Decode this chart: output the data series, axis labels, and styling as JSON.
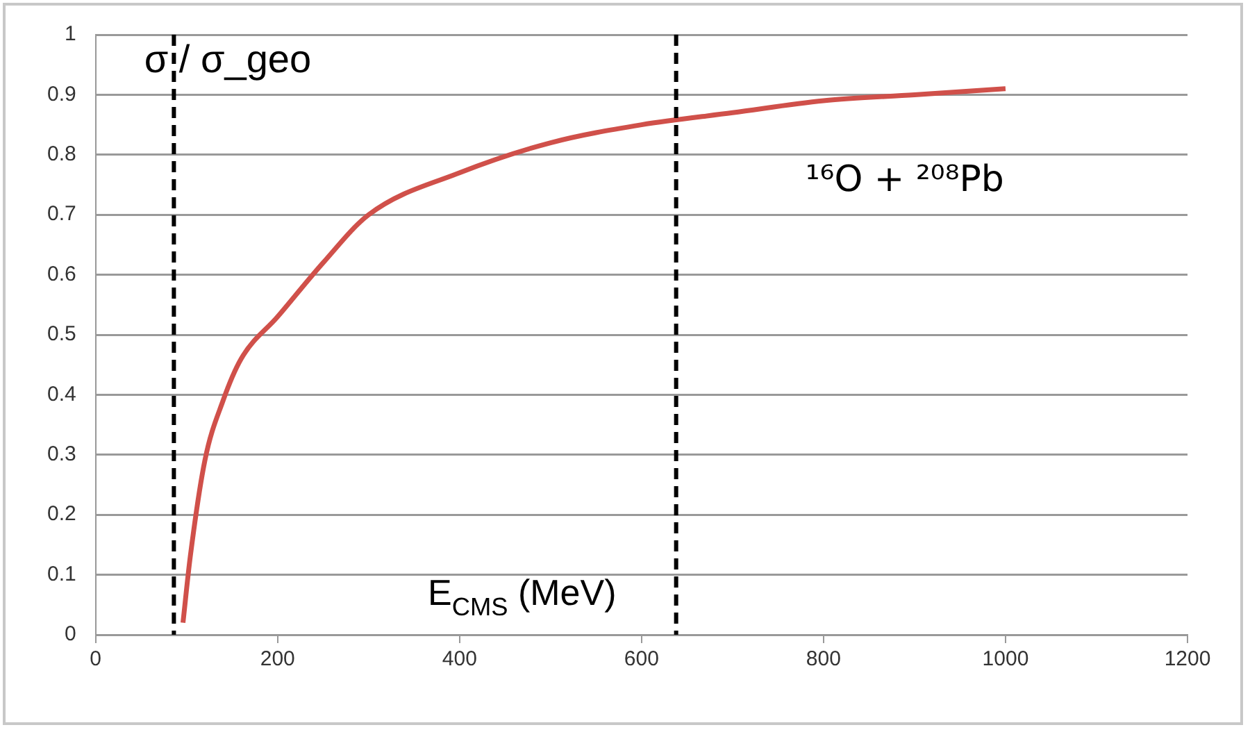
{
  "chart_data": {
    "type": "line",
    "xlabel": "E$_{CMS}$ (MeV)",
    "ylabel": "σ / σ_geo",
    "annotations": [
      "¹⁶O + ²⁰⁸Pb"
    ],
    "x": [
      96,
      104,
      120,
      140,
      160,
      200,
      250,
      300,
      400,
      500,
      600,
      700,
      800,
      900,
      1000
    ],
    "series": [
      {
        "color": "#d0504a",
        "values": [
          0.02,
          0.13,
          0.29,
          0.39,
          0.46,
          0.53,
          0.62,
          0.7,
          0.77,
          0.82,
          0.85,
          0.87,
          0.89,
          0.9,
          0.91
        ]
      }
    ],
    "xlim": [
      0,
      1200
    ],
    "xticks": [
      0,
      200,
      400,
      600,
      800,
      1000,
      1200
    ],
    "ylim": [
      0,
      1
    ],
    "yticks": [
      0,
      0.1,
      0.2,
      0.3,
      0.4,
      0.5,
      0.6,
      0.7,
      0.8,
      0.9,
      1
    ],
    "grid": "y",
    "legend": false,
    "marker": "none",
    "line_style": "solid",
    "ref_lines": [
      {
        "axis": "x",
        "value": 86,
        "color": "#000000",
        "line_style": "dashed"
      },
      {
        "axis": "x",
        "value": 638,
        "color": "#000000",
        "line_style": "dashed"
      }
    ]
  }
}
